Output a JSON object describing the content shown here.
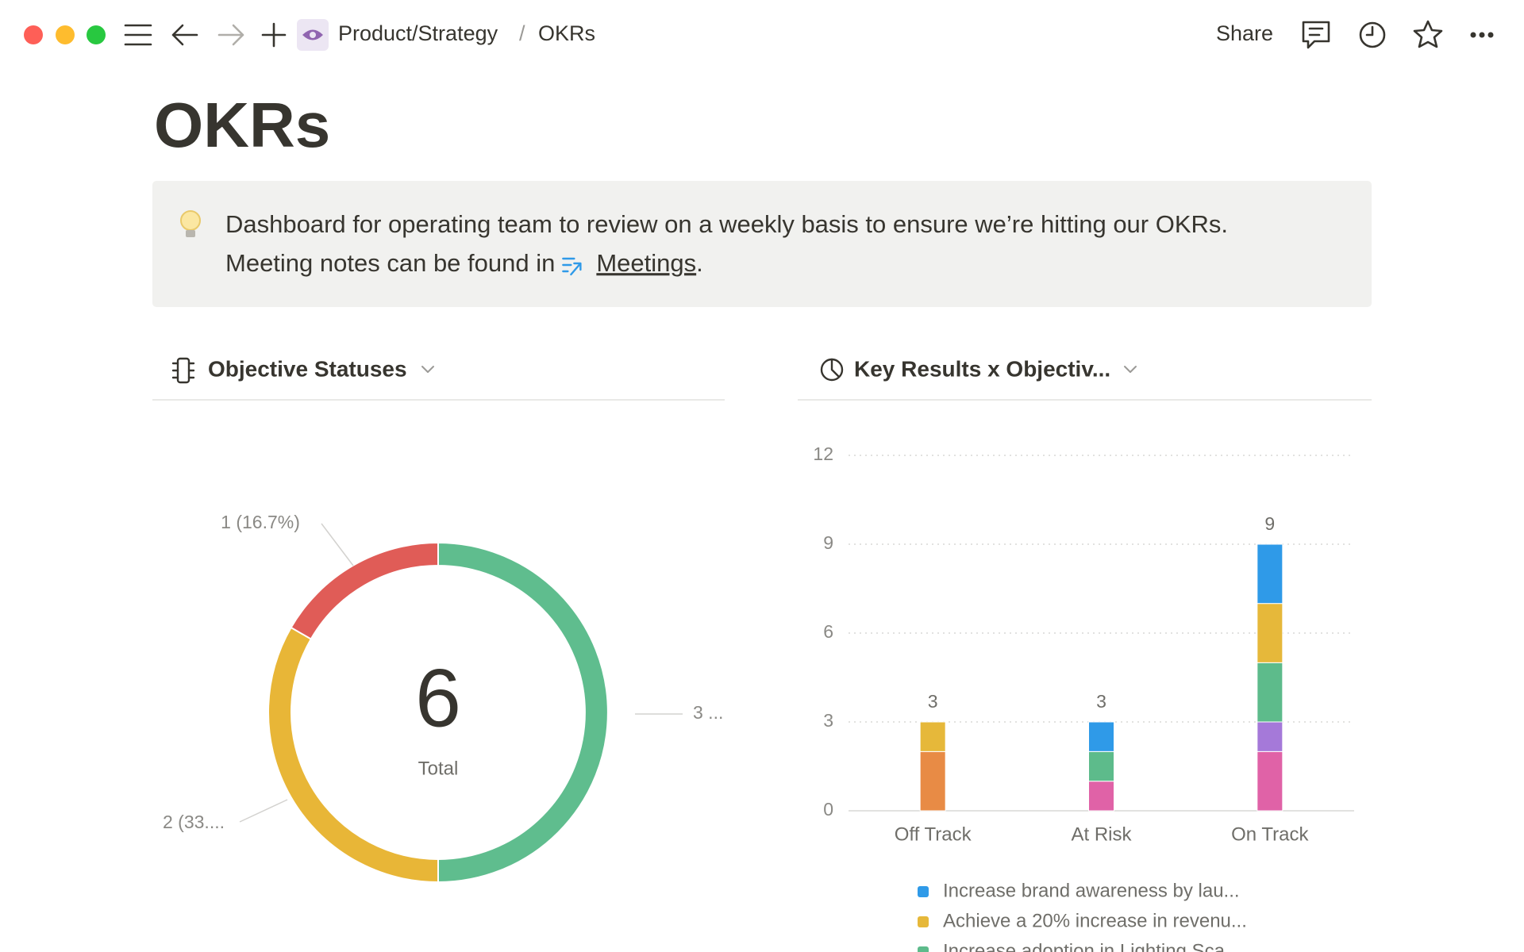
{
  "header": {
    "breadcrumb": [
      "Product/Strategy",
      "OKRs"
    ],
    "share": "Share"
  },
  "title": "OKRs",
  "callout": {
    "line1": "Dashboard for operating team to review on a weekly basis to ensure we’re hitting our OKRs.",
    "line2": "Meeting notes can be found in",
    "link": "Meetings",
    "end": "."
  },
  "chart_data": [
    {
      "type": "donut",
      "title": "Objective Statuses",
      "values": [
        3,
        2,
        1
      ],
      "value_labels": [
        "3 ...",
        "2 (33....",
        "1 (16.7%)"
      ],
      "colors": [
        "#5fbd8e",
        "#e8b637",
        "#e05c57"
      ],
      "total": 6,
      "total_label": "Total"
    },
    {
      "type": "stacked-bar",
      "title": "Key Results x Objectiv...",
      "categories": [
        "Off Track",
        "At Risk",
        "On Track"
      ],
      "series": [
        {
          "name": "Increase brand awareness by lau...",
          "color": "#2f9ae8",
          "values": [
            0,
            1,
            2
          ]
        },
        {
          "name": "Achieve a 20% increase in revenu...",
          "color": "#e6b83a",
          "values": [
            1,
            0,
            2
          ]
        },
        {
          "name": "Increase adoption in Lighting Sca...",
          "color": "#5dbb8b",
          "values": [
            0,
            1,
            2
          ]
        },
        {
          "color": "#a579d9",
          "values": [
            0,
            0,
            1
          ]
        },
        {
          "color": "#e062a7",
          "values": [
            0,
            1,
            2
          ]
        },
        {
          "color": "#e88b45",
          "values": [
            2,
            0,
            0
          ]
        }
      ],
      "totals": [
        3,
        3,
        9
      ],
      "ylim": [
        0,
        12
      ],
      "yticks": [
        0,
        3,
        6,
        9,
        12
      ],
      "grid": true
    }
  ]
}
